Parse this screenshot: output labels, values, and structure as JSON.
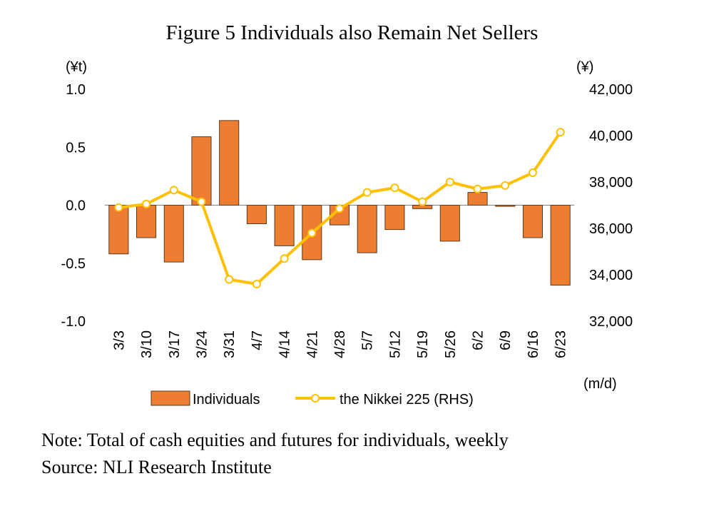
{
  "chart_data": {
    "type": "bar+line",
    "title": "Figure 5 Individuals also Remain Net Sellers",
    "categories": [
      "3/3",
      "3/10",
      "3/17",
      "3/24",
      "3/31",
      "4/7",
      "4/14",
      "4/21",
      "4/28",
      "5/7",
      "5/12",
      "5/19",
      "5/26",
      "6/2",
      "6/9",
      "6/16",
      "6/23"
    ],
    "series": [
      {
        "name": "Individuals",
        "type": "bar",
        "axis": "left",
        "color": "#ED7D31",
        "values": [
          -0.42,
          -0.28,
          -0.49,
          0.59,
          0.73,
          -0.16,
          -0.35,
          -0.47,
          -0.17,
          -0.41,
          -0.21,
          -0.03,
          -0.31,
          0.11,
          -0.01,
          -0.28,
          -0.69
        ]
      },
      {
        "name": "the Nikkei 225 (RHS)",
        "type": "line",
        "axis": "right",
        "color": "#FFC000",
        "values": [
          36900,
          37050,
          37650,
          37150,
          33800,
          33600,
          34700,
          35800,
          36850,
          37550,
          37750,
          37150,
          38000,
          37700,
          37850,
          38400,
          40150
        ]
      }
    ],
    "y_left": {
      "unit_label": "(¥t)",
      "ylim": [
        -1.0,
        1.0
      ],
      "ticks": [
        "1.0",
        "0.5",
        "0.0",
        "-0.5",
        "-1.0"
      ],
      "tick_values": [
        1.0,
        0.5,
        0.0,
        -0.5,
        -1.0
      ]
    },
    "y_right": {
      "unit_label": "(¥)",
      "ylim": [
        32000,
        42000
      ],
      "ticks": [
        "42,000",
        "40,000",
        "38,000",
        "36,000",
        "34,000",
        "32,000"
      ],
      "tick_values": [
        42000,
        40000,
        38000,
        36000,
        34000,
        32000
      ]
    },
    "x_unit_label": "(m/d)",
    "legend": {
      "position": "bottom",
      "bar_label": "Individuals",
      "line_label": "the Nikkei 225 (RHS)"
    }
  },
  "note": "Note: Total of cash equities and futures for individuals, weekly",
  "source": "Source: NLI Research Institute"
}
